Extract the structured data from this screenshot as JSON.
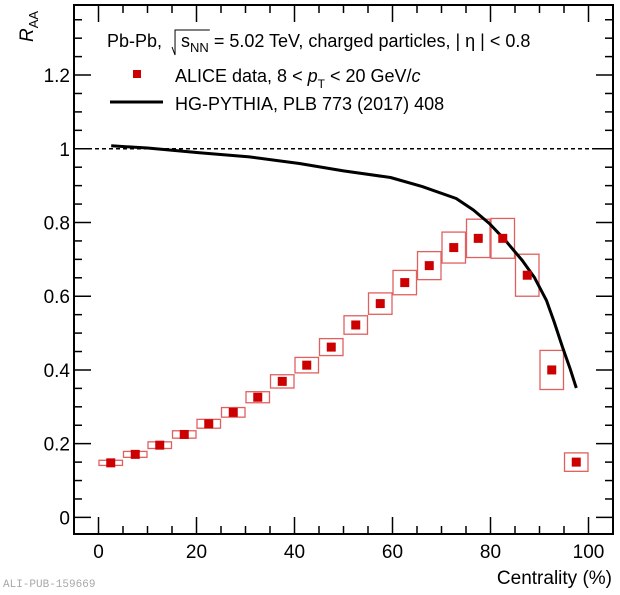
{
  "chart_data": {
    "type": "scatter",
    "title": "",
    "xlabel": "Centrality (%)",
    "ylabel": "R_AA",
    "ylabel_main": "R",
    "ylabel_sub": "AA",
    "xlim": [
      -5,
      105
    ],
    "ylim": [
      -0.045,
      1.39
    ],
    "x_major_ticks": [
      0,
      20,
      40,
      60,
      80,
      100
    ],
    "x_tick_labels": [
      "0",
      "20",
      "40",
      "60",
      "80",
      "100"
    ],
    "x_minor_step": 5,
    "y_major_ticks": [
      0,
      0.2,
      0.4,
      0.6,
      0.8,
      1.0,
      1.2
    ],
    "y_tick_labels": [
      "0",
      "0.2",
      "0.4",
      "0.6",
      "0.8",
      "1",
      "1.2"
    ],
    "y_minor_step": 0.05,
    "grid": false,
    "reference_line": {
      "y": 1.0,
      "style": "dashed"
    },
    "annotation": {
      "prefix": "Pb-Pb, ",
      "sqrt_s": "s",
      "sqrt_sub": "NN",
      "suffix": " = 5.02 TeV, charged particles, | η | < 0.8"
    },
    "legend": {
      "placement": "top-left",
      "entries": [
        {
          "label_pre": "ALICE data, 8 < ",
          "label_var": "p",
          "label_sub": "T",
          "label_post": " < 20 GeV/",
          "label_unit": "c",
          "marker": "square",
          "color": "#cc0000"
        },
        {
          "label": "HG-PYTHIA, PLB 773 (2017) 408",
          "marker": "line",
          "color": "#000000"
        }
      ]
    },
    "series": [
      {
        "name": "ALICE data, 8 < pT < 20 GeV/c",
        "type": "scatter",
        "color": "#cc0000",
        "box_color": "#e06060",
        "bin_width": 5,
        "x": [
          2.5,
          7.5,
          12.5,
          17.5,
          22.5,
          27.5,
          32.5,
          37.5,
          42.5,
          47.5,
          52.5,
          57.5,
          62.5,
          67.5,
          72.5,
          77.5,
          82.5,
          87.5,
          92.5,
          97.5
        ],
        "y": [
          0.148,
          0.171,
          0.196,
          0.225,
          0.254,
          0.285,
          0.326,
          0.369,
          0.413,
          0.462,
          0.522,
          0.58,
          0.637,
          0.683,
          0.732,
          0.757,
          0.757,
          0.657,
          0.4,
          0.15
        ],
        "sys_err": [
          0.007,
          0.008,
          0.009,
          0.01,
          0.012,
          0.013,
          0.015,
          0.018,
          0.021,
          0.023,
          0.025,
          0.029,
          0.033,
          0.038,
          0.042,
          0.052,
          0.054,
          0.057,
          0.053,
          0.025
        ],
        "stat_err": [
          0.002,
          0.002,
          0.002,
          0.002,
          0.002,
          0.002,
          0.003,
          0.003,
          0.003,
          0.003,
          0.004,
          0.004,
          0.004,
          0.005,
          0.005,
          0.006,
          0.007,
          0.009,
          0.011,
          0.01
        ]
      },
      {
        "name": "HG-PYTHIA, PLB 773 (2017) 408",
        "type": "line",
        "color": "#000000",
        "x": [
          2.6,
          10,
          20.6,
          30.8,
          41,
          50,
          59.6,
          66,
          73,
          76.5,
          79.8,
          83,
          86.5,
          89,
          91.4,
          93,
          94.7,
          96.2,
          97.5
        ],
        "y": [
          1.008,
          1.002,
          0.989,
          0.978,
          0.96,
          0.94,
          0.922,
          0.898,
          0.865,
          0.834,
          0.797,
          0.752,
          0.697,
          0.65,
          0.589,
          0.53,
          0.462,
          0.405,
          0.351
        ]
      }
    ]
  },
  "watermark": "ALI-PUB-159669"
}
